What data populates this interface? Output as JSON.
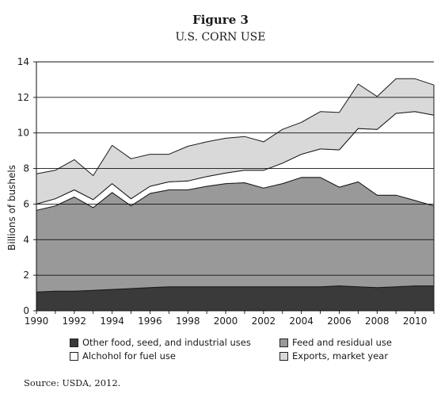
{
  "figure": {
    "label": "Figure 3",
    "title": "U.S. CORN USE",
    "source_prefix": "Source: ",
    "source_org": "USDA",
    "source_suffix": ", 2012."
  },
  "chart_data": {
    "type": "area",
    "stacked": true,
    "title": "U.S. CORN USE",
    "ylabel": "Billions of bushels",
    "xlabel": "",
    "xlim": [
      1990,
      2011
    ],
    "ylim": [
      0,
      14
    ],
    "yticks": [
      0,
      2,
      4,
      6,
      8,
      10,
      12,
      14
    ],
    "xticks": [
      1990,
      1992,
      1994,
      1996,
      1998,
      2000,
      2002,
      2004,
      2006,
      2008,
      2010
    ],
    "gridlines_y": [
      2,
      4,
      6,
      8,
      10,
      12
    ],
    "legend_position": "bottom",
    "x": [
      1990,
      1991,
      1992,
      1993,
      1994,
      1995,
      1996,
      1997,
      1998,
      1999,
      2000,
      2001,
      2002,
      2003,
      2004,
      2005,
      2006,
      2007,
      2008,
      2009,
      2010,
      2011
    ],
    "series": [
      {
        "name": "Other food, seed, and industrial uses",
        "color": "#3a3a3a",
        "values": [
          1.05,
          1.1,
          1.1,
          1.15,
          1.2,
          1.25,
          1.3,
          1.35,
          1.35,
          1.35,
          1.35,
          1.35,
          1.35,
          1.35,
          1.35,
          1.35,
          1.4,
          1.35,
          1.3,
          1.35,
          1.4,
          1.4
        ]
      },
      {
        "name": "Feed and residual use",
        "color": "#999999",
        "values": [
          4.6,
          4.8,
          5.3,
          4.65,
          5.45,
          4.65,
          5.3,
          5.45,
          5.45,
          5.65,
          5.8,
          5.85,
          5.55,
          5.8,
          6.15,
          6.15,
          5.55,
          5.9,
          5.2,
          5.15,
          4.8,
          4.5
        ]
      },
      {
        "name": "Alchohol for fuel use",
        "color": "#ffffff",
        "values": [
          0.35,
          0.4,
          0.4,
          0.45,
          0.5,
          0.4,
          0.4,
          0.45,
          0.5,
          0.55,
          0.6,
          0.7,
          1.0,
          1.15,
          1.3,
          1.6,
          2.1,
          3.0,
          3.7,
          4.6,
          5.0,
          5.1
        ]
      },
      {
        "name": "Exports, market year",
        "color": "#d9d9d9",
        "values": [
          1.7,
          1.6,
          1.7,
          1.35,
          2.15,
          2.25,
          1.8,
          1.55,
          1.95,
          1.95,
          1.95,
          1.9,
          1.6,
          1.9,
          1.8,
          2.1,
          2.1,
          2.5,
          1.85,
          1.95,
          1.85,
          1.7
        ]
      }
    ]
  }
}
